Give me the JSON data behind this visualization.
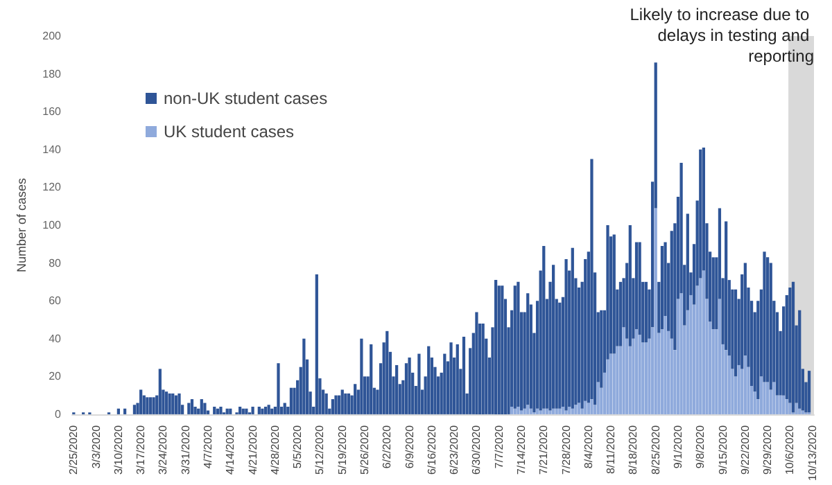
{
  "chart_data": {
    "type": "bar",
    "stacked": true,
    "ylabel": "Number of cases",
    "ylim": [
      0,
      200
    ],
    "yticks": [
      0,
      20,
      40,
      60,
      80,
      100,
      120,
      140,
      160,
      180,
      200
    ],
    "grid": false,
    "legend": "top left",
    "categories": [
      "2/25/2020",
      null,
      null,
      null,
      null,
      null,
      null,
      "3/3/2020",
      null,
      null,
      null,
      null,
      null,
      null,
      "3/10/2020",
      null,
      null,
      null,
      null,
      null,
      null,
      "3/17/2020",
      null,
      null,
      null,
      null,
      null,
      null,
      "3/24/2020",
      null,
      null,
      null,
      null,
      null,
      null,
      "3/31/2020",
      null,
      null,
      null,
      null,
      null,
      null,
      "4/7/2020",
      null,
      null,
      null,
      null,
      null,
      null,
      "4/14/2020",
      null,
      null,
      null,
      null,
      null,
      null,
      "4/21/2020",
      null,
      null,
      null,
      null,
      null,
      null,
      "4/28/2020",
      null,
      null,
      null,
      null,
      null,
      null,
      "5/5/2020",
      null,
      null,
      null,
      null,
      null,
      null,
      "5/12/2020",
      null,
      null,
      null,
      null,
      null,
      null,
      "5/19/2020",
      null,
      null,
      null,
      null,
      null,
      null,
      "5/26/2020",
      null,
      null,
      null,
      null,
      null,
      null,
      "6/2/2020",
      null,
      null,
      null,
      null,
      null,
      null,
      "6/9/2020",
      null,
      null,
      null,
      null,
      null,
      null,
      "6/16/2020",
      null,
      null,
      null,
      null,
      null,
      null,
      "6/23/2020",
      null,
      null,
      null,
      null,
      null,
      null,
      "6/30/2020",
      null,
      null,
      null,
      null,
      null,
      null,
      "7/7/2020",
      null,
      null,
      null,
      null,
      null,
      null,
      "7/14/2020",
      null,
      null,
      null,
      null,
      null,
      null,
      "7/21/2020",
      null,
      null,
      null,
      null,
      null,
      null,
      "7/28/2020",
      null,
      null,
      null,
      null,
      null,
      null,
      "8/4/2020",
      null,
      null,
      null,
      null,
      null,
      null,
      "8/11/2020",
      null,
      null,
      null,
      null,
      null,
      null,
      "8/18/2020",
      null,
      null,
      null,
      null,
      null,
      null,
      "8/25/2020",
      null,
      null,
      null,
      null,
      null,
      null,
      "9/1/2020",
      null,
      null,
      null,
      null,
      null,
      null,
      "9/8/2020",
      null,
      null,
      null,
      null,
      null,
      null,
      "9/15/2020",
      null,
      null,
      null,
      null,
      null,
      null,
      "9/22/2020",
      null,
      null,
      null,
      null,
      null,
      null,
      "9/29/2020",
      null,
      null,
      null,
      null,
      null,
      null,
      "10/6/2020",
      null,
      null,
      null,
      null,
      null,
      null,
      "10/13/2020"
    ],
    "series": [
      {
        "name": "UK student cases",
        "color": "#8faadc",
        "values": [
          0,
          0,
          0,
          0,
          0,
          0,
          0,
          0,
          0,
          0,
          0,
          0,
          0,
          0,
          0,
          0,
          0,
          0,
          0,
          0,
          0,
          0,
          0,
          0,
          0,
          0,
          0,
          0,
          0,
          0,
          0,
          0,
          0,
          0,
          0,
          0,
          0,
          0,
          0,
          0,
          0,
          0,
          0,
          0,
          0,
          0,
          0,
          0,
          0,
          0,
          0,
          0,
          0,
          0,
          0,
          0,
          0,
          0,
          0,
          0,
          0,
          0,
          0,
          0,
          0,
          0,
          0,
          0,
          0,
          0,
          0,
          0,
          0,
          0,
          0,
          0,
          0,
          0,
          0,
          0,
          0,
          0,
          0,
          0,
          0,
          0,
          0,
          0,
          0,
          0,
          0,
          0,
          0,
          0,
          0,
          0,
          0,
          0,
          0,
          0,
          0,
          0,
          0,
          0,
          0,
          0,
          0,
          0,
          0,
          0,
          0,
          0,
          0,
          0,
          0,
          0,
          0,
          0,
          0,
          0,
          0,
          0,
          0,
          0,
          0,
          0,
          0,
          0,
          0,
          0,
          0,
          0,
          0,
          0,
          0,
          0,
          0,
          4,
          3,
          4,
          2,
          3,
          5,
          3,
          1,
          3,
          2,
          3,
          3,
          2,
          3,
          3,
          3,
          4,
          2,
          4,
          3,
          5,
          6,
          3,
          7,
          6,
          8,
          5,
          17,
          14,
          22,
          29,
          32,
          32,
          36,
          36,
          46,
          40,
          36,
          40,
          45,
          42,
          38,
          38,
          40,
          46,
          109,
          43,
          45,
          52,
          44,
          40,
          34,
          61,
          64,
          47,
          55,
          63,
          58,
          68,
          72,
          76,
          61,
          49,
          45,
          45,
          61,
          37,
          34,
          31,
          24,
          20,
          26,
          24,
          31,
          25,
          15,
          12,
          8,
          20,
          17,
          17,
          13,
          17,
          10,
          10,
          10,
          8,
          6,
          1,
          6,
          3,
          2,
          1,
          1,
          0
        ]
      },
      {
        "name": "non-UK student cases",
        "color": "#2f5597",
        "values": [
          1,
          0,
          0,
          1,
          0,
          1,
          0,
          0,
          0,
          0,
          0,
          1,
          0,
          0,
          3,
          0,
          3,
          0,
          0,
          5,
          6,
          13,
          10,
          9,
          9,
          9,
          10,
          24,
          13,
          12,
          11,
          11,
          10,
          11,
          5,
          0,
          6,
          8,
          4,
          3,
          8,
          6,
          2,
          0,
          4,
          3,
          4,
          1,
          3,
          3,
          0,
          1,
          4,
          3,
          3,
          1,
          4,
          0,
          4,
          3,
          4,
          5,
          3,
          4,
          27,
          4,
          6,
          4,
          14,
          14,
          18,
          25,
          40,
          29,
          12,
          4,
          74,
          19,
          13,
          11,
          3,
          8,
          10,
          10,
          13,
          11,
          11,
          10,
          16,
          13,
          40,
          20,
          20,
          37,
          14,
          13,
          27,
          38,
          44,
          33,
          20,
          26,
          16,
          18,
          27,
          30,
          22,
          15,
          32,
          13,
          20,
          36,
          30,
          25,
          20,
          22,
          32,
          28,
          38,
          30,
          37,
          24,
          41,
          11,
          35,
          43,
          54,
          48,
          48,
          40,
          30,
          46,
          71,
          68,
          68,
          61,
          46,
          51,
          65,
          66,
          52,
          51,
          59,
          55,
          42,
          57,
          74,
          86,
          58,
          68,
          76,
          58,
          56,
          58,
          80,
          72,
          85,
          67,
          61,
          67,
          75,
          80,
          127,
          70,
          37,
          41,
          33,
          71,
          62,
          63,
          30,
          34,
          26,
          40,
          64,
          32,
          46,
          49,
          32,
          32,
          26,
          77,
          77,
          27,
          44,
          39,
          36,
          57,
          67,
          54,
          69,
          32,
          51,
          12,
          32,
          45,
          68,
          65,
          40,
          37,
          38,
          38,
          48,
          35,
          68,
          40,
          42,
          46,
          35,
          50,
          49,
          42,
          45,
          42,
          52,
          46,
          69,
          66,
          67,
          43,
          44,
          34,
          47,
          55,
          61,
          69,
          41,
          52,
          22,
          16,
          22,
          0
        ]
      }
    ],
    "bands": [
      {
        "axis": "x",
        "from": "10/6/2020",
        "to": "10/13/2020",
        "label": "Likely to increase due to delays in testing and reporting",
        "color": "#d9d9d9"
      }
    ]
  }
}
